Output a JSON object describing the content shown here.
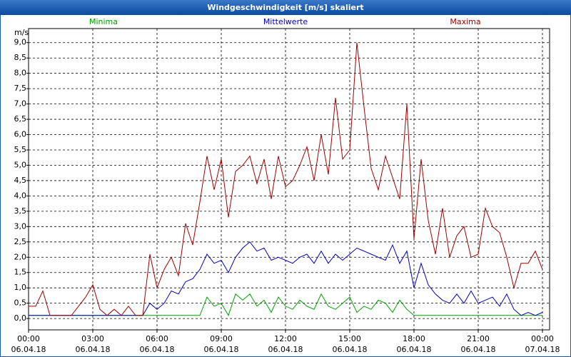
{
  "chart_data": {
    "type": "line",
    "title": "Windgeschwindigkeit [m/s] skaliert",
    "y_unit": "m/s",
    "x": [
      0,
      20,
      40,
      60,
      80,
      100,
      120,
      140,
      160,
      180,
      200,
      220,
      240,
      260,
      280,
      300,
      320,
      340,
      360,
      380,
      400,
      420,
      440,
      460,
      480,
      500,
      520,
      540,
      560,
      580,
      600,
      620,
      640,
      660,
      680,
      700,
      720,
      740,
      760,
      780,
      800,
      820,
      840,
      860,
      880,
      900,
      920,
      940,
      960,
      980,
      1000,
      1020,
      1040,
      1060,
      1080,
      1100,
      1120,
      1140,
      1160,
      1180,
      1200,
      1220,
      1240,
      1260,
      1280,
      1300,
      1320,
      1340,
      1360,
      1380,
      1400,
      1420,
      1440
    ],
    "xlim": [
      0,
      1460
    ],
    "xticks": [
      {
        "value": 0,
        "label": "00:00",
        "date": "06.04.18"
      },
      {
        "value": 180,
        "label": "03:00",
        "date": "06.04.18"
      },
      {
        "value": 360,
        "label": "06:00",
        "date": "06.04.18"
      },
      {
        "value": 540,
        "label": "09:00",
        "date": "06.04.18"
      },
      {
        "value": 720,
        "label": "12:00",
        "date": "06.04.18"
      },
      {
        "value": 900,
        "label": "15:00",
        "date": "06.04.18"
      },
      {
        "value": 1080,
        "label": "18:00",
        "date": "06.04.18"
      },
      {
        "value": 1260,
        "label": "21:00",
        "date": "06.04.18"
      },
      {
        "value": 1440,
        "label": "00:00",
        "date": "07.04.18"
      }
    ],
    "ylim": [
      -0.37,
      9.46
    ],
    "yticks": [
      {
        "value": 0,
        "label": "0,0"
      },
      {
        "value": 0.5,
        "label": "0,5"
      },
      {
        "value": 1,
        "label": "1,0"
      },
      {
        "value": 1.5,
        "label": "1,5"
      },
      {
        "value": 2,
        "label": "2,0"
      },
      {
        "value": 2.5,
        "label": "2,5"
      },
      {
        "value": 3,
        "label": "3,0"
      },
      {
        "value": 3.5,
        "label": "3,5"
      },
      {
        "value": 4,
        "label": "4,0"
      },
      {
        "value": 4.5,
        "label": "4,5"
      },
      {
        "value": 5,
        "label": "5,0"
      },
      {
        "value": 5.5,
        "label": "5,5"
      },
      {
        "value": 6,
        "label": "6,0"
      },
      {
        "value": 6.5,
        "label": "6,5"
      },
      {
        "value": 7,
        "label": "7,0"
      },
      {
        "value": 7.5,
        "label": "7,5"
      },
      {
        "value": 8,
        "label": "8,0"
      },
      {
        "value": 8.5,
        "label": "8,5"
      },
      {
        "value": 9,
        "label": "9,0"
      }
    ],
    "grid": true,
    "series": [
      {
        "name": "Minima",
        "color": "#00a000",
        "values": [
          0.1,
          0.1,
          0.1,
          0.1,
          0.1,
          0.1,
          0.1,
          0.1,
          0.1,
          0.1,
          0.1,
          0.1,
          0.1,
          0.1,
          0.1,
          0.1,
          0.1,
          0.1,
          0.1,
          0.1,
          0.1,
          0.1,
          0.1,
          0.1,
          0.1,
          0.7,
          0.4,
          0.5,
          0.1,
          0.8,
          0.6,
          0.8,
          0.4,
          0.6,
          0.2,
          0.7,
          0.4,
          0.3,
          0.6,
          0.4,
          0.3,
          0.8,
          0.4,
          0.3,
          0.5,
          0.7,
          0.2,
          0.4,
          0.3,
          0.6,
          0.5,
          0.2,
          0.6,
          0.3,
          0.1,
          0.1,
          0.1,
          0.1,
          0.1,
          0.1,
          0.1,
          0.1,
          0.1,
          0.1,
          0.1,
          0.1,
          0.1,
          0.1,
          0.1,
          0.1,
          0.1,
          0.1,
          0.1
        ]
      },
      {
        "name": "Mittelwerte",
        "color": "#0000c0",
        "values": [
          0.1,
          0.1,
          0.1,
          0.1,
          0.1,
          0.1,
          0.1,
          0.1,
          0.1,
          0.1,
          0.1,
          0.1,
          0.1,
          0.1,
          0.1,
          0.1,
          0.1,
          0.5,
          0.3,
          0.5,
          0.9,
          0.8,
          1.2,
          1.3,
          1.6,
          2.1,
          1.8,
          1.9,
          1.5,
          2.0,
          2.3,
          2.5,
          2.2,
          2.3,
          1.9,
          2.0,
          1.9,
          1.8,
          2.0,
          2.1,
          1.8,
          2.2,
          1.8,
          2.1,
          1.9,
          2.1,
          2.3,
          2.2,
          2.1,
          2.0,
          1.9,
          2.4,
          1.8,
          2.2,
          1.0,
          1.8,
          1.1,
          0.8,
          0.6,
          0.5,
          0.8,
          0.5,
          0.9,
          0.5,
          0.6,
          0.7,
          0.4,
          0.8,
          0.3,
          0.1,
          0.2,
          0.1,
          0.2
        ]
      },
      {
        "name": "Maxima",
        "color": "#a00000",
        "values": [
          0.4,
          0.4,
          0.9,
          0.1,
          0.1,
          0.1,
          0.1,
          0.4,
          0.7,
          1.1,
          0.3,
          0.1,
          0.3,
          0.1,
          0.4,
          0.1,
          0.1,
          2.1,
          1.0,
          1.6,
          2.0,
          1.4,
          3.1,
          2.4,
          3.8,
          5.3,
          4.2,
          5.2,
          3.3,
          4.8,
          5.0,
          5.3,
          4.4,
          5.2,
          3.9,
          5.3,
          4.3,
          4.5,
          5.0,
          5.6,
          4.5,
          6.0,
          4.7,
          7.2,
          5.2,
          5.5,
          9.0,
          6.9,
          4.9,
          4.2,
          5.3,
          4.6,
          3.9,
          7.0,
          2.6,
          5.2,
          3.2,
          2.1,
          3.6,
          2.0,
          2.7,
          3.0,
          2.0,
          2.1,
          3.6,
          3.0,
          2.8,
          2.0,
          1.0,
          1.8,
          1.8,
          2.2,
          1.6
        ]
      }
    ]
  }
}
